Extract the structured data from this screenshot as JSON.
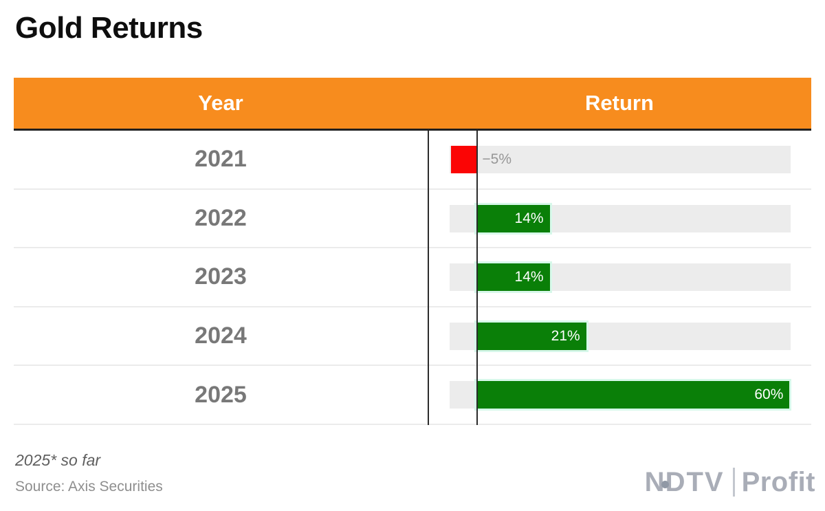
{
  "title": "Gold Returns",
  "table": {
    "columns": [
      "Year",
      "Return"
    ]
  },
  "chart_data": {
    "type": "bar",
    "orientation": "horizontal",
    "title": "Gold Returns",
    "categories": [
      "2021",
      "2022",
      "2023",
      "2024",
      "2025"
    ],
    "values": [
      -5,
      14,
      14,
      21,
      60
    ],
    "bar_labels": [
      "−5%",
      "14%",
      "14%",
      "21%",
      "60%"
    ],
    "xlabel": "Return",
    "ylabel": "Year",
    "xlim": [
      -5.2,
      60.2
    ],
    "grid": false,
    "legend": "none"
  },
  "footnote": "2025* so far",
  "source": "Source: Axis Securities",
  "logo": {
    "n": "N",
    "dtv": "DTV",
    "profit": "Profit"
  },
  "colors": {
    "header_bg": "#f78c1e",
    "header_text": "#ffffff",
    "negative_bar": "#fb0505",
    "positive_bar": "#0a7f08",
    "bar_glow": "#d7f8ea",
    "track": "#ececec",
    "year_text": "#787878",
    "logo_gray": "#a9adb7"
  }
}
